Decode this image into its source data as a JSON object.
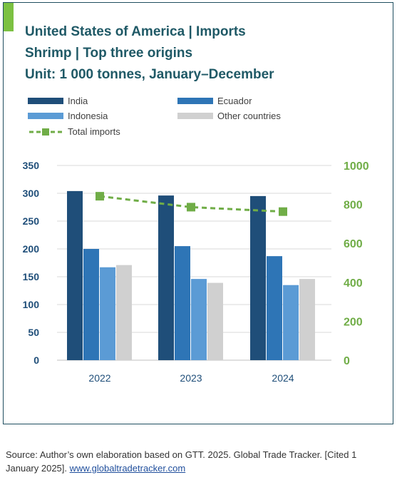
{
  "title_lines": [
    "United States of America | Imports",
    "Shrimp | Top three origins",
    "Unit: 1 000 tonnes, January–December"
  ],
  "colors": {
    "India": "#1f4e79",
    "Ecuador": "#2e75b6",
    "Indonesia": "#5b9bd5",
    "Other countries": "#d0d0d0",
    "Total imports": "#70ad47",
    "title": "#1f5966",
    "right_axis": "#70ad47"
  },
  "chart_data": {
    "type": "bar",
    "categories": [
      "2022",
      "2023",
      "2024"
    ],
    "series": [
      {
        "name": "India",
        "values": [
          304,
          296,
          295
        ],
        "axis": "left"
      },
      {
        "name": "Ecuador",
        "values": [
          200,
          205,
          187
        ],
        "axis": "left"
      },
      {
        "name": "Indonesia",
        "values": [
          167,
          146,
          135
        ],
        "axis": "left"
      },
      {
        "name": "Other countries",
        "values": [
          171,
          139,
          146
        ],
        "axis": "left"
      }
    ],
    "line_series": [
      {
        "name": "Total imports",
        "type": "line",
        "style": "dashed",
        "marker": "square",
        "values": [
          842,
          786,
          763
        ],
        "axis": "right"
      }
    ],
    "left_axis": {
      "range": [
        0,
        350
      ],
      "ticks": [
        "0",
        "50",
        "100",
        "150",
        "200",
        "250",
        "300",
        "350"
      ]
    },
    "right_axis": {
      "range": [
        0,
        1000
      ],
      "ticks": [
        "0",
        "200",
        "400",
        "600",
        "800",
        "1000"
      ]
    },
    "grid": true,
    "legend_position": "top"
  },
  "source": {
    "text": "Source: Author’s own elaboration based on GTT. 2025. Global Trade Tracker. [Cited 1 January 2025]. ",
    "link": "www.globaltradetracker.com"
  }
}
